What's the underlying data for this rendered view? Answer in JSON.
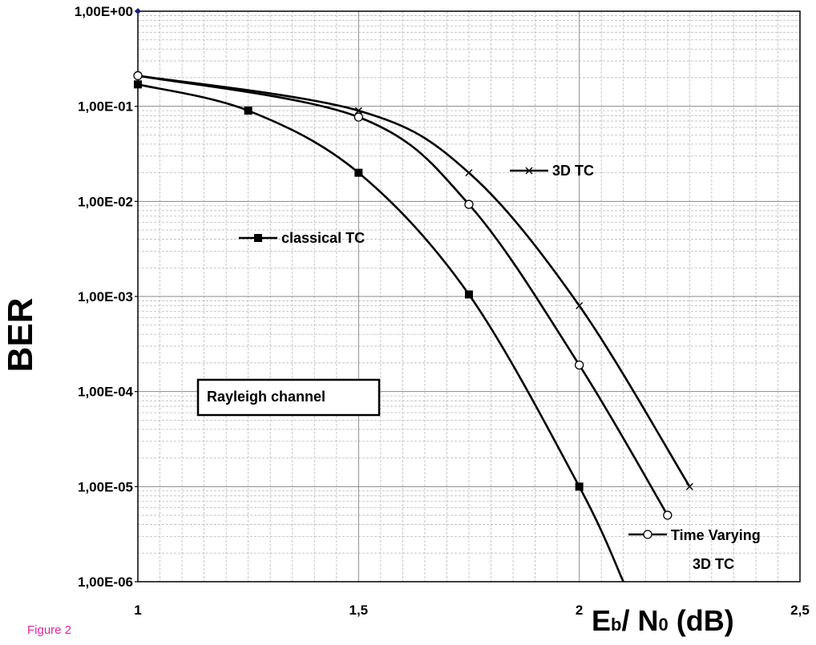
{
  "caption": "Figure 2",
  "chart_data": {
    "type": "line",
    "xlabel_main": "E",
    "xlabel_sub1": "b",
    "xlabel_mid": "/ N",
    "xlabel_sub2": "0",
    "xlabel_end": " (dB)",
    "ylabel": "BER",
    "y_scale": "log",
    "xlim": [
      1,
      2.5
    ],
    "ylim": [
      1e-06,
      1
    ],
    "x_ticks": [
      1,
      1.5,
      2,
      2.5
    ],
    "x_tick_labels": [
      "1",
      "1,5",
      "2",
      "2,5"
    ],
    "y_ticks": [
      1,
      0.1,
      0.01,
      0.001,
      0.0001,
      1e-05,
      1e-06
    ],
    "y_tick_labels": [
      "1,00E+00",
      "1,00E-01",
      "1,00E-02",
      "1,00E-03",
      "1,00E-04",
      "1,00E-05",
      "1,00E-06"
    ],
    "grid": true,
    "annotation": "Rayleigh channel",
    "series": [
      {
        "name": "classical TC",
        "marker": "square",
        "x": [
          1,
          1.25,
          1.5,
          1.75,
          2,
          2.1
        ],
        "y": [
          0.17,
          0.09,
          0.02,
          0.00105,
          1e-05,
          1e-06
        ],
        "marked": [
          true,
          true,
          true,
          true,
          true,
          false
        ]
      },
      {
        "name": "3D TC",
        "marker": "x",
        "x": [
          1,
          1.5,
          1.75,
          2,
          2.25
        ],
        "y": [
          0.21,
          0.09,
          0.02,
          0.0008,
          1e-05
        ],
        "marked": [
          false,
          true,
          true,
          true,
          true
        ]
      },
      {
        "name": "Time Varying 3D TC",
        "name_line1": "Time Varying",
        "name_line2": "3D TC",
        "marker": "circle",
        "x": [
          1,
          1.5,
          1.75,
          2,
          2.2
        ],
        "y": [
          0.21,
          0.077,
          0.0093,
          0.00019,
          5e-06
        ],
        "marked": [
          true,
          true,
          true,
          true,
          true
        ]
      }
    ],
    "extra_point": {
      "x": 1,
      "y": 1,
      "color": "#1a237e"
    }
  }
}
